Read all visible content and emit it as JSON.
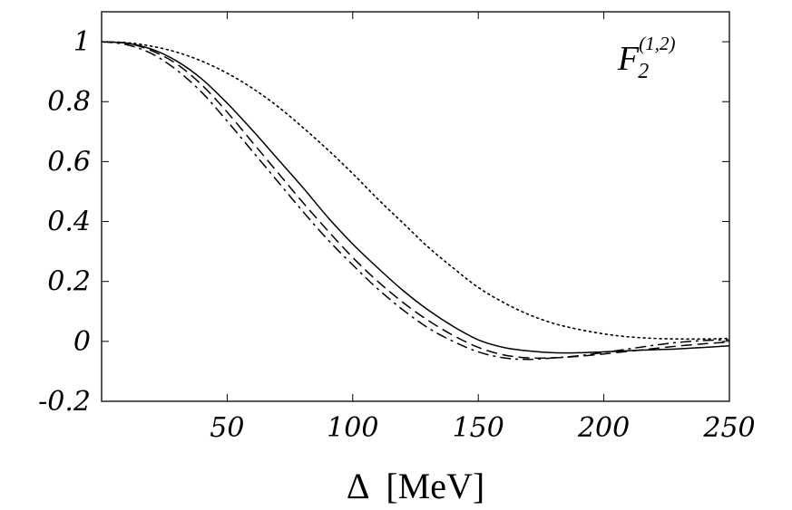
{
  "chart_data": {
    "type": "line",
    "title": "",
    "xlabel": "Δ  [MeV]",
    "ylabel": "",
    "xlim": [
      0,
      250
    ],
    "ylim": [
      -0.2,
      1.1
    ],
    "x_ticks": [
      50,
      100,
      150,
      200,
      250
    ],
    "x_tick_labels": [
      "50",
      "100",
      "150",
      "200",
      "250"
    ],
    "y_ticks": [
      -0.2,
      0,
      0.2,
      0.4,
      0.6,
      0.8,
      1
    ],
    "y_tick_labels": [
      "-0.2",
      "0",
      "0.2",
      "0.4",
      "0.6",
      "0.8",
      "1"
    ],
    "grid": false,
    "annotation": {
      "text": "F",
      "subscript": "2",
      "superscript": "(1,2)",
      "position": "top-right"
    },
    "series": [
      {
        "name": "solid",
        "style": "solid",
        "x": [
          0,
          10,
          20,
          30,
          40,
          50,
          60,
          70,
          80,
          90,
          100,
          110,
          120,
          130,
          140,
          150,
          160,
          170,
          180,
          190,
          200,
          210,
          220,
          230,
          240,
          250
        ],
        "y": [
          1.0,
          0.995,
          0.975,
          0.935,
          0.875,
          0.795,
          0.705,
          0.61,
          0.515,
          0.415,
          0.325,
          0.245,
          0.17,
          0.105,
          0.05,
          0.005,
          -0.02,
          -0.032,
          -0.038,
          -0.038,
          -0.035,
          -0.031,
          -0.028,
          -0.025,
          -0.02,
          -0.015
        ]
      },
      {
        "name": "dashed",
        "style": "dashed",
        "x": [
          0,
          10,
          20,
          30,
          40,
          50,
          60,
          70,
          80,
          90,
          100,
          110,
          120,
          130,
          140,
          150,
          160,
          170,
          180,
          190,
          200,
          210,
          220,
          230,
          240,
          250
        ],
        "y": [
          1.0,
          0.995,
          0.97,
          0.925,
          0.855,
          0.765,
          0.665,
          0.565,
          0.465,
          0.37,
          0.28,
          0.2,
          0.13,
          0.07,
          0.02,
          -0.02,
          -0.045,
          -0.055,
          -0.055,
          -0.05,
          -0.042,
          -0.033,
          -0.024,
          -0.015,
          -0.008,
          -0.002
        ]
      },
      {
        "name": "dash-dot",
        "style": "dashdot",
        "x": [
          0,
          10,
          20,
          30,
          40,
          50,
          60,
          70,
          80,
          90,
          100,
          110,
          120,
          130,
          140,
          150,
          160,
          170,
          180,
          190,
          200,
          210,
          220,
          230,
          240,
          250
        ],
        "y": [
          1.0,
          0.99,
          0.96,
          0.905,
          0.83,
          0.735,
          0.635,
          0.535,
          0.435,
          0.34,
          0.255,
          0.175,
          0.105,
          0.045,
          0.0,
          -0.035,
          -0.055,
          -0.06,
          -0.055,
          -0.048,
          -0.037,
          -0.025,
          -0.013,
          -0.003,
          0.003,
          0.005
        ]
      },
      {
        "name": "dotted",
        "style": "dotted",
        "x": [
          0,
          10,
          20,
          30,
          40,
          50,
          60,
          70,
          80,
          90,
          100,
          110,
          120,
          130,
          140,
          150,
          160,
          170,
          180,
          190,
          200,
          210,
          220,
          230,
          240,
          250
        ],
        "y": [
          1.0,
          0.997,
          0.985,
          0.965,
          0.935,
          0.895,
          0.845,
          0.785,
          0.715,
          0.64,
          0.56,
          0.475,
          0.395,
          0.315,
          0.245,
          0.18,
          0.13,
          0.09,
          0.06,
          0.04,
          0.025,
          0.015,
          0.01,
          0.008,
          0.008,
          0.01
        ]
      }
    ]
  }
}
